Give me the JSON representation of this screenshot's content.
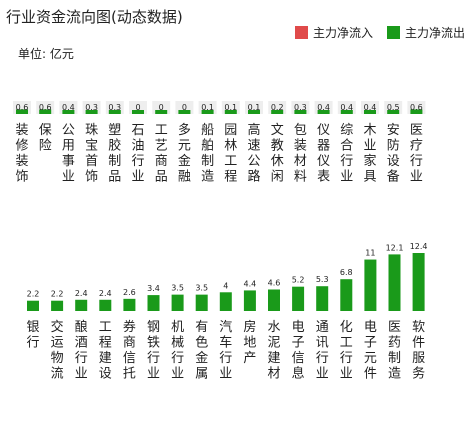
{
  "title": "行业资金流向图(动态数据)",
  "unit_label": "单位: 亿元",
  "legend": [
    {
      "label": "主力净流入",
      "color": "#e04a4a"
    },
    {
      "label": "主力净流出",
      "color": "#1a9a1a"
    }
  ],
  "colors": {
    "inflow": "#e04a4a",
    "outflow": "#1a9a1a"
  },
  "chart_data": [
    {
      "type": "bar",
      "categories": [
        "装修装饰",
        "保险",
        "公用事业",
        "珠宝首饰",
        "塑胶制品",
        "石油行业",
        "工艺商品",
        "多元金融",
        "船舶制造",
        "园林工程",
        "高速公路",
        "文教休闲",
        "包装材料",
        "仪器仪表",
        "综合行业",
        "木业家具",
        "安防设备",
        "医疗行业"
      ],
      "series": [
        {
          "values": [
            0.6,
            0.6,
            0.4,
            0.3,
            0.3,
            0,
            0,
            0,
            0.1,
            0.1,
            0.1,
            0.2,
            0.3,
            0.4,
            0.4,
            0.4,
            0.5,
            0.6
          ]
        }
      ],
      "value_labels": [
        "0.6",
        "0.6",
        "0.4",
        "0.3",
        "0.3",
        "0",
        "0",
        "0",
        "0.1",
        "0.1",
        "0.1",
        "0.2",
        "0.3",
        "0.4",
        "0.4",
        "0.4",
        "0.5",
        "0.6"
      ],
      "direction": "outflow"
    },
    {
      "type": "bar",
      "categories": [
        "银行",
        "交运物流",
        "酿酒行业",
        "工程建设",
        "券商信托",
        "钢铁行业",
        "机械行业",
        "有色金属",
        "汽车行业",
        "房地产",
        "水泥建材",
        "电子信息",
        "通讯行业",
        "化工行业",
        "电子元件",
        "医药制造",
        "软件服务"
      ],
      "series": [
        {
          "values": [
            2.2,
            2.2,
            2.4,
            2.4,
            2.6,
            3.4,
            3.5,
            3.5,
            4,
            4.4,
            4.6,
            5.2,
            5.3,
            6.8,
            11,
            12.1,
            12.4
          ]
        }
      ],
      "value_labels": [
        "2.2",
        "2.2",
        "2.4",
        "2.4",
        "2.6",
        "3.4",
        "3.5",
        "3.5",
        "4",
        "4.4",
        "4.6",
        "5.2",
        "5.3",
        "6.8",
        "11",
        "12.1",
        "12.4"
      ],
      "direction": "outflow"
    }
  ]
}
